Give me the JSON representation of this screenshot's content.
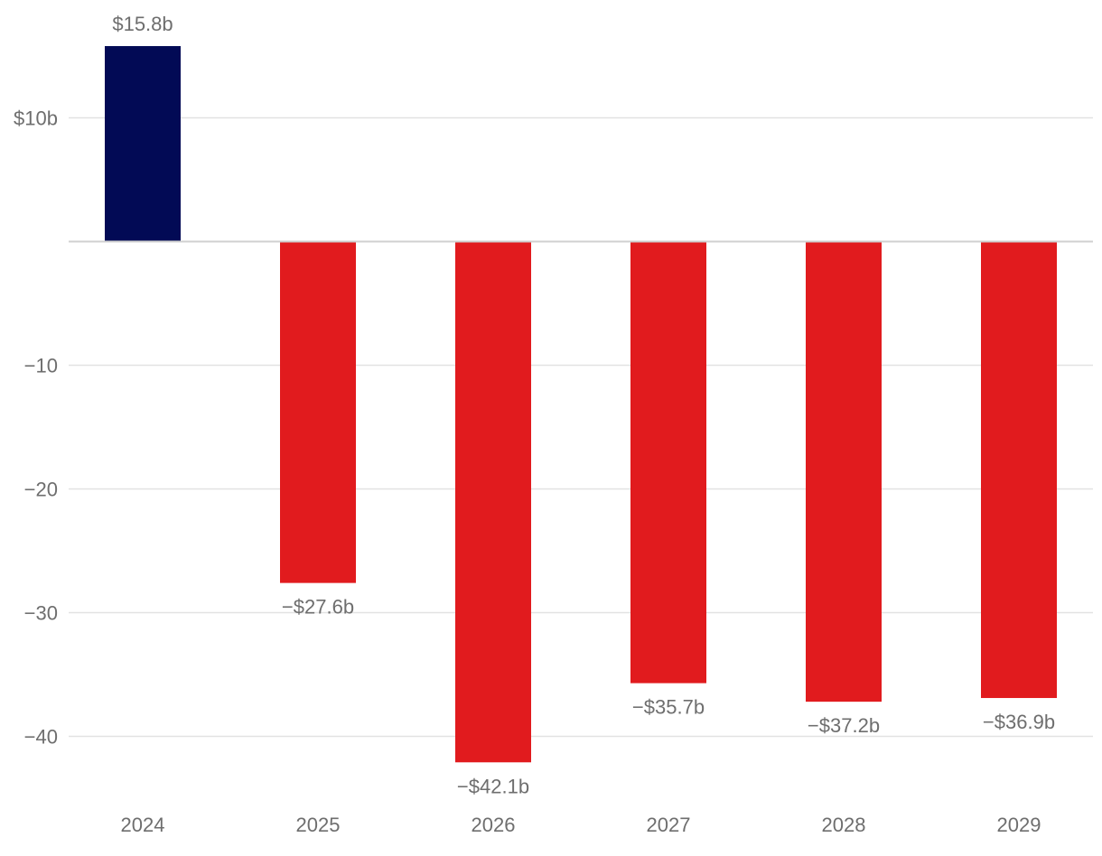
{
  "chart_data": {
    "type": "bar",
    "categories": [
      "2024",
      "2025",
      "2026",
      "2027",
      "2028",
      "2029"
    ],
    "values": [
      15.8,
      -27.6,
      -42.1,
      -35.7,
      -37.2,
      -36.9
    ],
    "data_labels": [
      "$15.8b",
      "−$27.6b",
      "−$42.1b",
      "−$35.7b",
      "−$37.2b",
      "−$36.9b"
    ],
    "y_ticks": [
      {
        "value": 10,
        "label": "$10b"
      },
      {
        "value": -10,
        "label": "−10"
      },
      {
        "value": -20,
        "label": "−20"
      },
      {
        "value": -30,
        "label": "−30"
      },
      {
        "value": -40,
        "label": "−40"
      }
    ],
    "ylim": [
      -43.5,
      19.5
    ],
    "grid": true,
    "colors": {
      "positive": "#020a55",
      "negative": "#e11b1e"
    }
  }
}
